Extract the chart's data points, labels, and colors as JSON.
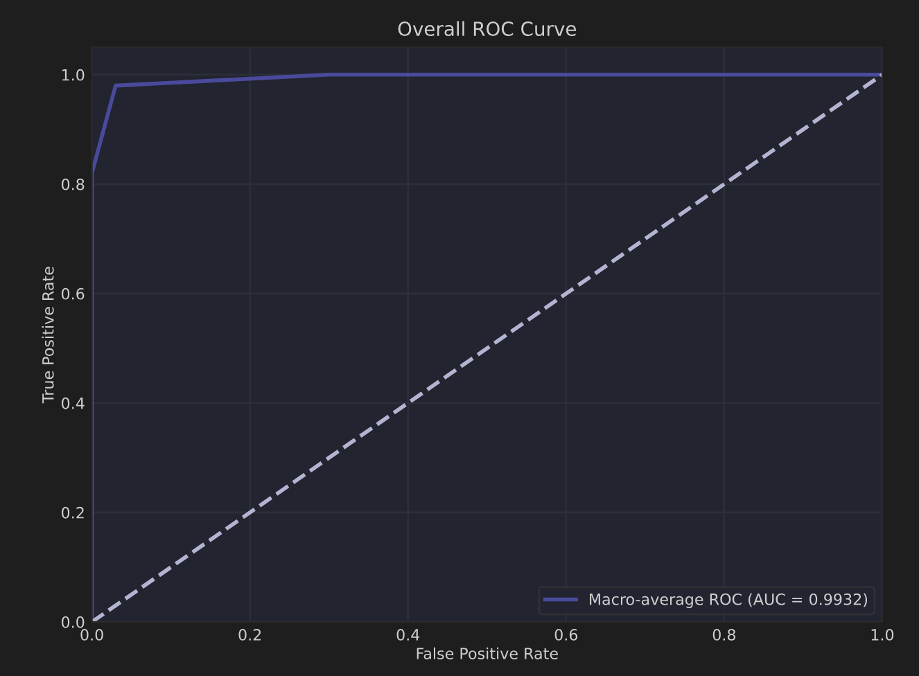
{
  "chart_data": {
    "type": "line",
    "title": "Overall ROC Curve",
    "xlabel": "False Positive Rate",
    "ylabel": "True Positive Rate",
    "series": [
      {
        "name": "Macro-average ROC (AUC = 0.9932)",
        "color": "#4a4a9c",
        "x": [
          0,
          0,
          0.03,
          0.3,
          1
        ],
        "values": [
          0,
          0.82,
          0.98,
          1.0,
          1.0
        ]
      },
      {
        "color": "#b4b4d2",
        "x": [
          0,
          1
        ],
        "values": [
          0,
          1
        ],
        "line_style": "dashed"
      }
    ],
    "xlim": [
      0,
      1
    ],
    "ylim": [
      0,
      1.05
    ],
    "xticks": [
      {
        "value": 0,
        "label": "0.0"
      },
      0.2,
      0.4,
      0.6,
      0.8,
      {
        "value": 1,
        "label": "1.0"
      }
    ],
    "yticks": [
      {
        "value": 0,
        "label": "0.0"
      },
      0.2,
      0.4,
      0.6,
      0.8,
      {
        "value": 1,
        "label": "1.0"
      }
    ],
    "grid": true,
    "legend": "bottom right"
  }
}
